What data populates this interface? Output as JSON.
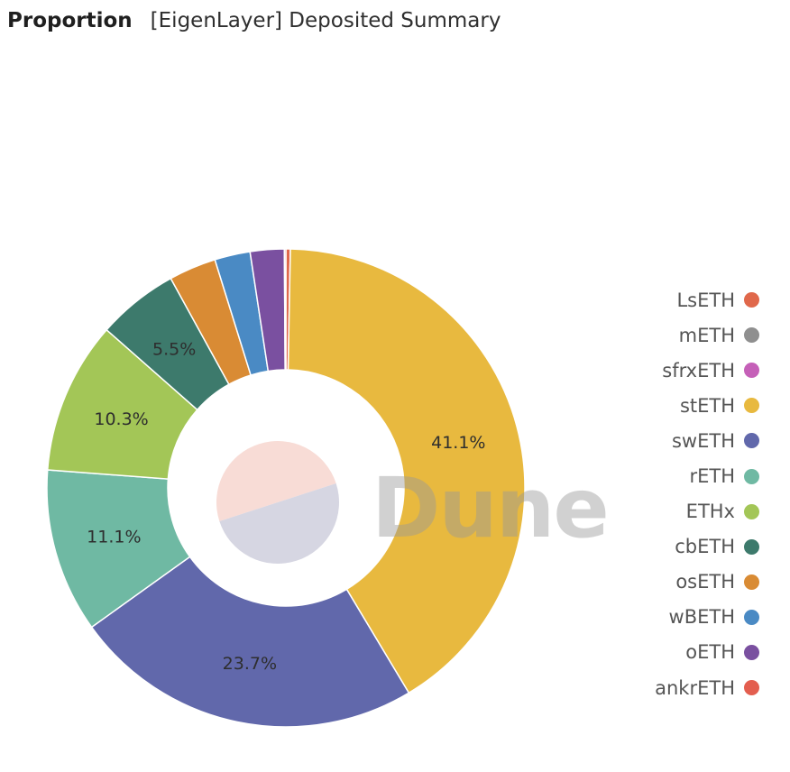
{
  "header": {
    "title": "Proportion",
    "subtitle": "[EigenLayer] Deposited Summary"
  },
  "watermark": "Dune",
  "chart_data": {
    "type": "pie",
    "variant": "donut",
    "title": "Proportion",
    "subtitle": "[EigenLayer] Deposited Summary",
    "legend_position": "right",
    "slices": [
      {
        "label": "LsETH",
        "value": 0.3,
        "color": "#e0684b"
      },
      {
        "label": "stETH",
        "value": 41.1,
        "color": "#e8b93f"
      },
      {
        "label": "swETH",
        "value": 23.7,
        "color": "#6168ab"
      },
      {
        "label": "rETH",
        "value": 11.1,
        "color": "#6fb9a3"
      },
      {
        "label": "ETHx",
        "value": 10.3,
        "color": "#a3c657"
      },
      {
        "label": "cbETH",
        "value": 5.5,
        "color": "#3d7a6c"
      },
      {
        "label": "osETH",
        "value": 3.2,
        "color": "#d98b34"
      },
      {
        "label": "wBETH",
        "value": 2.4,
        "color": "#4a8ac4"
      },
      {
        "label": "oETH",
        "value": 2.3,
        "color": "#7a50a0"
      },
      {
        "label": "ankrETH",
        "value": 0.1,
        "color": "#e35e4f"
      }
    ],
    "data_labels": [
      {
        "label": "stETH",
        "text": "41.1%"
      },
      {
        "label": "swETH",
        "text": "23.7%"
      },
      {
        "label": "rETH",
        "text": "11.1%"
      },
      {
        "label": "ETHx",
        "text": "10.3%"
      },
      {
        "label": "cbETH",
        "text": "5.5%"
      }
    ],
    "legend": [
      {
        "label": "LsETH",
        "color": "#e0684b"
      },
      {
        "label": "mETH",
        "color": "#8f8f8f"
      },
      {
        "label": "sfrxETH",
        "color": "#c560b8"
      },
      {
        "label": "stETH",
        "color": "#e8b93f"
      },
      {
        "label": "swETH",
        "color": "#6168ab"
      },
      {
        "label": "rETH",
        "color": "#6fb9a3"
      },
      {
        "label": "ETHx",
        "color": "#a3c657"
      },
      {
        "label": "cbETH",
        "color": "#3d7a6c"
      },
      {
        "label": "osETH",
        "color": "#d98b34"
      },
      {
        "label": "wBETH",
        "color": "#4a8ac4"
      },
      {
        "label": "oETH",
        "color": "#7a50a0"
      },
      {
        "label": "ankrETH",
        "color": "#e35e4f"
      }
    ]
  }
}
